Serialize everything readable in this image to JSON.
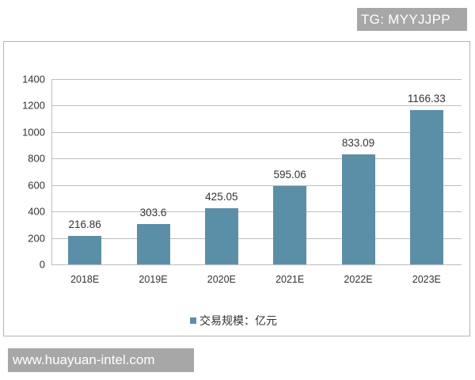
{
  "watermarks": {
    "top": "TG: MYYJJPP",
    "bottom": "www.huayuan-intel.com"
  },
  "colors": {
    "bar": "#5b8fa8",
    "grid": "#bdbdbd",
    "watermark_bg": "#a7a7a7"
  },
  "legend": {
    "label": "交易规模：亿元"
  },
  "y_axis": {
    "ticks": [
      "0",
      "200",
      "400",
      "600",
      "800",
      "1000",
      "1200",
      "1400"
    ]
  },
  "chart_data": {
    "type": "bar",
    "title": "",
    "xlabel": "",
    "ylabel": "",
    "categories": [
      "2018E",
      "2019E",
      "2020E",
      "2021E",
      "2022E",
      "2023E"
    ],
    "series": [
      {
        "name": "交易规模：亿元",
        "values": [
          216.86,
          303.6,
          425.05,
          595.06,
          833.09,
          1166.33
        ]
      }
    ],
    "value_labels": [
      "216.86",
      "303.6",
      "425.05",
      "595.06",
      "833.09",
      "1166.33"
    ],
    "ylim": [
      0,
      1400
    ],
    "yticks": [
      0,
      200,
      400,
      600,
      800,
      1000,
      1200,
      1400
    ],
    "grid": true,
    "legend_position": "bottom"
  }
}
